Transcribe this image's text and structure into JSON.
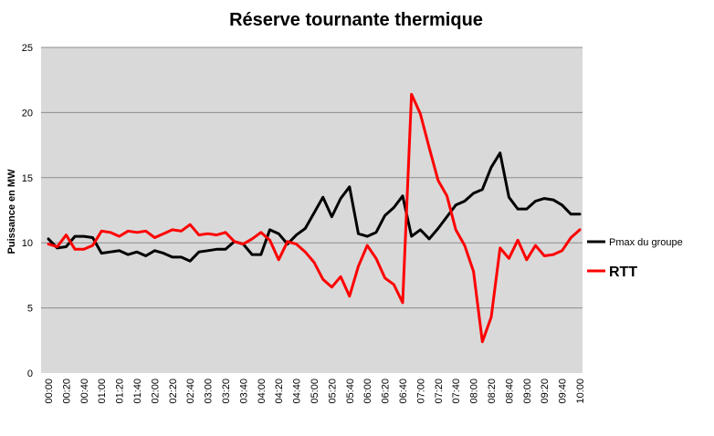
{
  "chart_data": {
    "type": "line",
    "title": "Réserve tournante thermique",
    "ylabel": "Puissance en MW",
    "xlabel": "",
    "ylim": [
      0,
      25
    ],
    "yticks": [
      0,
      5,
      10,
      15,
      20,
      25
    ],
    "grid": true,
    "legend_position": "right",
    "x_tick_labels": [
      "00:00",
      "00:20",
      "00:40",
      "01:00",
      "01:20",
      "01:40",
      "02:00",
      "02:20",
      "02:40",
      "03:00",
      "03:20",
      "03:40",
      "04:00",
      "04:20",
      "04:40",
      "05:00",
      "05:20",
      "05:40",
      "06:00",
      "06:20",
      "06:40",
      "07:00",
      "07:20",
      "07:40",
      "08:00",
      "08:20",
      "08:40",
      "09:00",
      "09:20",
      "09:40",
      "10:00"
    ],
    "x_step_minutes": 10,
    "series": [
      {
        "name": "Pmax du groupe",
        "color": "#000000",
        "values": [
          10.3,
          9.6,
          9.7,
          10.5,
          10.5,
          10.4,
          9.2,
          9.3,
          9.4,
          9.1,
          9.3,
          9.0,
          9.4,
          9.2,
          8.9,
          8.9,
          8.6,
          9.3,
          9.4,
          9.5,
          9.5,
          10.1,
          9.9,
          9.1,
          9.1,
          11.0,
          10.7,
          9.9,
          10.6,
          11.1,
          12.3,
          13.5,
          12.0,
          13.4,
          14.3,
          10.7,
          10.5,
          10.8,
          12.1,
          12.7,
          13.6,
          10.5,
          11.0,
          10.3,
          11.1,
          12.0,
          12.9,
          13.2,
          13.8,
          14.1,
          15.8,
          16.9,
          13.5,
          12.6,
          12.6,
          13.2,
          13.4,
          13.3,
          12.9,
          12.2,
          12.2
        ]
      },
      {
        "name": "RTT",
        "color": "#ff0000",
        "values": [
          9.9,
          9.7,
          10.6,
          9.5,
          9.5,
          9.8,
          10.9,
          10.8,
          10.5,
          10.9,
          10.8,
          10.9,
          10.4,
          10.7,
          11.0,
          10.9,
          11.4,
          10.6,
          10.7,
          10.6,
          10.8,
          10.1,
          9.9,
          10.3,
          10.8,
          10.2,
          8.7,
          10.1,
          9.9,
          9.3,
          8.5,
          7.2,
          6.6,
          7.4,
          5.9,
          8.2,
          9.8,
          8.8,
          7.3,
          6.8,
          5.4,
          21.4,
          19.9,
          17.3,
          14.8,
          13.6,
          11.0,
          9.8,
          7.8,
          2.4,
          4.3,
          9.6,
          8.8,
          10.2,
          8.7,
          9.8,
          9.0,
          9.1,
          9.4,
          10.4,
          11.0
        ]
      }
    ]
  }
}
